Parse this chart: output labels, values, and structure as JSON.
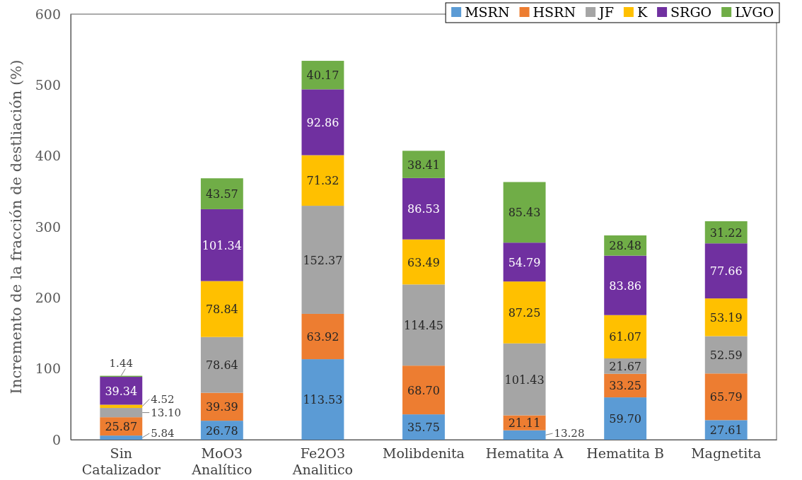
{
  "chart_data": {
    "type": "bar",
    "stacked": true,
    "ylabel": "Incremento de la fracción de destliación (%)",
    "categories": [
      "Sin\nCatalizador",
      "MoO3\nAnalítico",
      "Fe2O3\nAnalitico",
      "Molibdenita",
      "Hematita A",
      "Hematita B",
      "Magnetita"
    ],
    "series": [
      {
        "name": "MSRN",
        "color": "#5b9bd5",
        "values": [
          5.84,
          26.78,
          113.53,
          35.75,
          13.28,
          59.7,
          27.61
        ],
        "value_labels": [
          "5.84",
          "26.78",
          "113.53",
          "35.75",
          "13.28",
          "59.70",
          "27.61"
        ]
      },
      {
        "name": "HSRN",
        "color": "#ed7d31",
        "values": [
          25.87,
          39.39,
          63.92,
          68.7,
          21.11,
          33.25,
          65.79
        ],
        "value_labels": [
          "25.87",
          "39.39",
          "63.92",
          "68.70",
          "21.11",
          "33.25",
          "65.79"
        ]
      },
      {
        "name": "JF",
        "color": "#a5a5a5",
        "values": [
          13.1,
          78.64,
          152.37,
          114.45,
          101.43,
          21.67,
          52.59
        ],
        "value_labels": [
          "13.10",
          "78.64",
          "152.37",
          "114.45",
          "101.43",
          "21.67",
          "52.59"
        ]
      },
      {
        "name": "K",
        "color": "#ffc000",
        "values": [
          4.52,
          78.84,
          71.32,
          63.49,
          87.25,
          61.07,
          53.19
        ],
        "value_labels": [
          "4.52",
          "78.84",
          "71.32",
          "63.49",
          "87.25",
          "61.07",
          "53.19"
        ]
      },
      {
        "name": "SRGO",
        "color": "#7030a0",
        "values": [
          39.34,
          101.34,
          92.86,
          86.53,
          54.79,
          83.86,
          77.66
        ],
        "value_labels": [
          "39.34",
          "101.34",
          "92.86",
          "86.53",
          "54.79",
          "83.86",
          "77.66"
        ]
      },
      {
        "name": "LVGO",
        "color": "#70ad47",
        "values": [
          1.44,
          43.57,
          40.17,
          38.41,
          85.43,
          28.48,
          31.22
        ],
        "value_labels": [
          "1.44",
          "43.57",
          "40.17",
          "38.41",
          "85.43",
          "28.48",
          "31.22"
        ]
      }
    ],
    "ylim": [
      0,
      600
    ],
    "yticks": [
      0,
      100,
      200,
      300,
      400,
      500,
      600
    ],
    "grid": false,
    "legend": "top right"
  }
}
